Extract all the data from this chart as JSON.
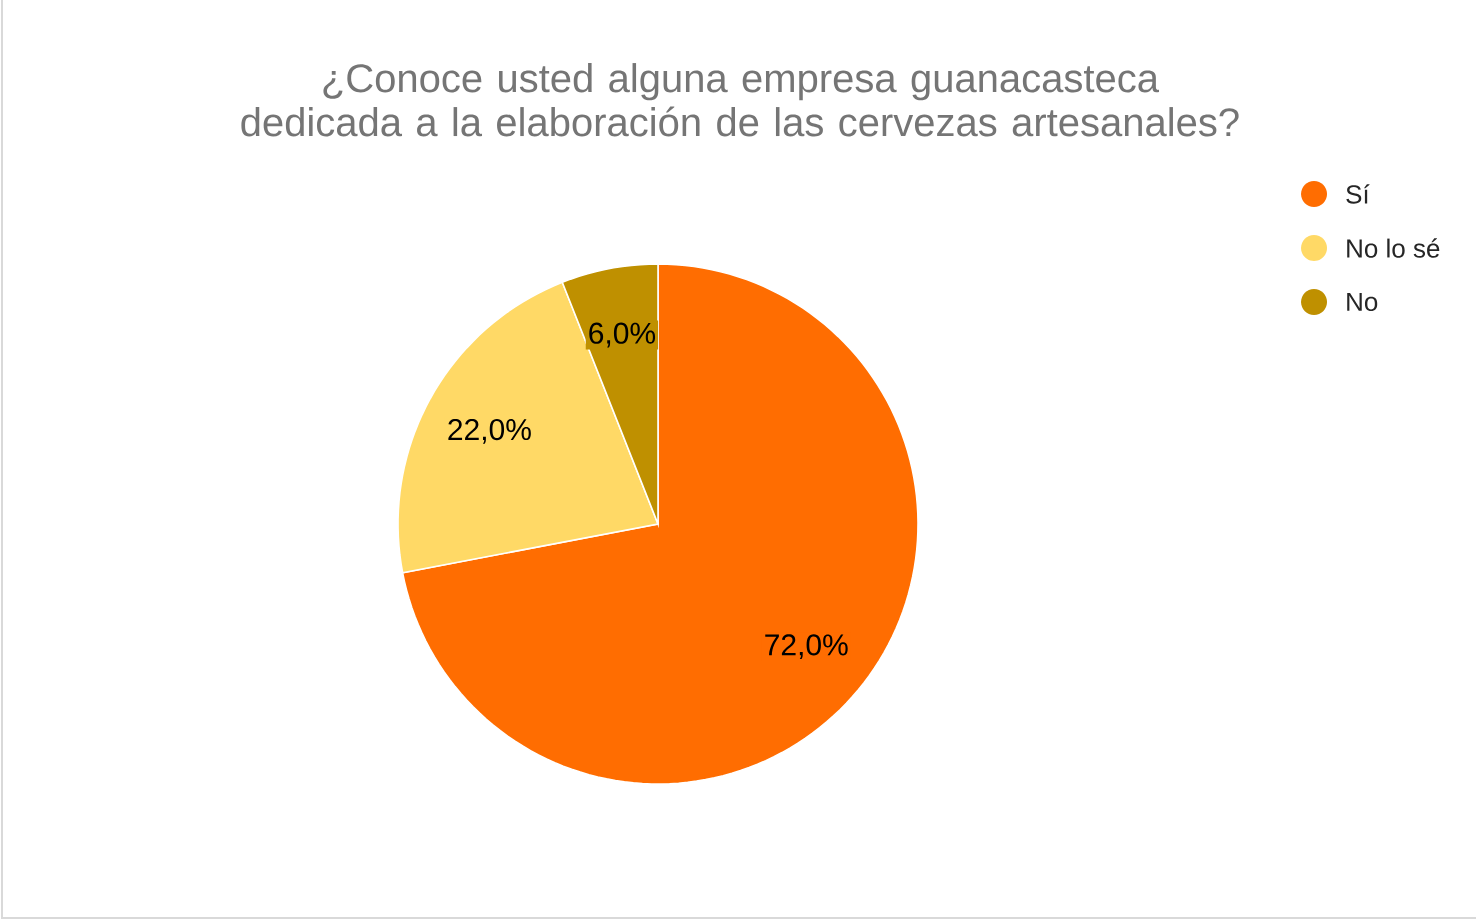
{
  "chart_data": {
    "type": "pie",
    "title": "¿Conoce usted alguna empresa guanacasteca dedicada a la elaboración de las cervezas artesanales?",
    "categories": [
      "Sí",
      "No lo sé",
      "No"
    ],
    "values": [
      72,
      22,
      6
    ],
    "colors": [
      "#ff6d01",
      "#ffd966",
      "#bf9000"
    ],
    "value_labels": [
      "72,0%",
      "22,0%",
      "6,0%"
    ],
    "legend": "top right"
  }
}
